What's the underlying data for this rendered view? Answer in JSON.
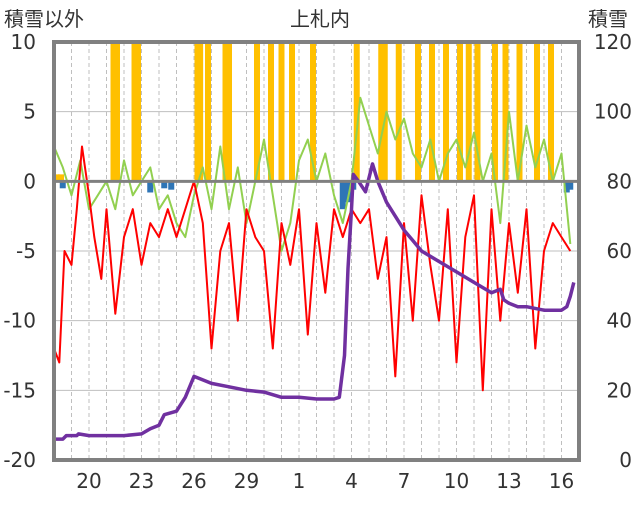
{
  "chart_data": {
    "type": "line",
    "title": "上札内",
    "ylabel_left": "積雪以外",
    "ylabel_right": "積雪",
    "ylim_left": [
      -20,
      10
    ],
    "ylim_right": [
      0,
      120
    ],
    "y_ticks_left": [
      10,
      5,
      0,
      -5,
      -10,
      -15,
      -20
    ],
    "y_ticks_right": [
      120,
      100,
      80,
      60,
      40,
      20,
      0
    ],
    "x_tick_labels": [
      "20",
      "23",
      "26",
      "29",
      "1",
      "4",
      "7",
      "10",
      "13",
      "16"
    ],
    "x_tick_days": [
      2,
      5,
      8,
      11,
      14,
      17,
      20,
      23,
      26,
      29
    ],
    "x_days": 30,
    "grid": true,
    "colors": {
      "precip_positive": "#ffc000",
      "precip_negative": "#2e75b6",
      "temperature": "#ff0000",
      "humidity": "#92d050",
      "snow_depth": "#7030a0",
      "frame": "#808080",
      "grid": "#bfbfbf"
    },
    "series": [
      {
        "axis": "left",
        "kind": "bar",
        "color": "#ffc000",
        "points": [
          [
            0.15,
            0.5
          ],
          [
            0.4,
            0.5
          ],
          [
            3.4,
            10
          ],
          [
            3.6,
            10
          ],
          [
            4.6,
            10
          ],
          [
            4.8,
            10
          ],
          [
            8.2,
            10
          ],
          [
            8.35,
            10
          ],
          [
            8.8,
            10
          ],
          [
            9.8,
            10
          ],
          [
            10.0,
            10
          ],
          [
            11.6,
            10
          ],
          [
            12.4,
            10
          ],
          [
            13.0,
            10
          ],
          [
            13.6,
            10
          ],
          [
            14.8,
            10
          ],
          [
            17.3,
            10
          ],
          [
            18.7,
            10
          ],
          [
            18.9,
            10
          ],
          [
            19.7,
            10
          ],
          [
            20.8,
            10
          ],
          [
            21.6,
            10
          ],
          [
            22.4,
            10
          ],
          [
            23.2,
            10
          ],
          [
            23.7,
            10
          ],
          [
            24.2,
            10
          ],
          [
            25.2,
            10
          ],
          [
            25.8,
            10
          ],
          [
            26.6,
            10
          ],
          [
            27.6,
            10
          ],
          [
            28.4,
            10
          ]
        ]
      },
      {
        "axis": "left",
        "kind": "bar",
        "color": "#2e75b6",
        "points": [
          [
            0.5,
            -0.5
          ],
          [
            5.5,
            -0.8
          ],
          [
            6.3,
            -0.5
          ],
          [
            6.7,
            -0.6
          ],
          [
            16.5,
            -2
          ],
          [
            16.8,
            -1.5
          ],
          [
            17.1,
            -0.6
          ],
          [
            29.3,
            -0.8
          ],
          [
            29.5,
            -0.6
          ]
        ]
      },
      {
        "axis": "left",
        "kind": "line",
        "color": "#92d050",
        "points": [
          [
            0,
            2.5
          ],
          [
            0.5,
            1
          ],
          [
            1,
            -1
          ],
          [
            1.5,
            1.5
          ],
          [
            2,
            -2
          ],
          [
            2.5,
            -1
          ],
          [
            3,
            0
          ],
          [
            3.5,
            -2
          ],
          [
            4,
            1.5
          ],
          [
            4.5,
            -1
          ],
          [
            5,
            0
          ],
          [
            5.5,
            1
          ],
          [
            6,
            -2
          ],
          [
            6.5,
            -1
          ],
          [
            7,
            -3
          ],
          [
            7.5,
            -4
          ],
          [
            8,
            -1
          ],
          [
            8.5,
            1
          ],
          [
            9,
            -2
          ],
          [
            9.5,
            2.5
          ],
          [
            10,
            -2
          ],
          [
            10.5,
            1
          ],
          [
            11,
            -3
          ],
          [
            11.5,
            0
          ],
          [
            12,
            3
          ],
          [
            12.5,
            -1
          ],
          [
            13,
            -5
          ],
          [
            13.5,
            -3
          ],
          [
            14,
            1.5
          ],
          [
            14.5,
            3
          ],
          [
            15,
            0
          ],
          [
            15.5,
            2
          ],
          [
            16,
            -1
          ],
          [
            16.5,
            -3
          ],
          [
            17,
            0
          ],
          [
            17.5,
            6
          ],
          [
            18,
            4
          ],
          [
            18.5,
            2
          ],
          [
            19,
            5
          ],
          [
            19.5,
            3
          ],
          [
            20,
            4.5
          ],
          [
            20.5,
            2
          ],
          [
            21,
            1
          ],
          [
            21.5,
            3
          ],
          [
            22,
            0
          ],
          [
            22.5,
            2
          ],
          [
            23,
            3
          ],
          [
            23.5,
            1
          ],
          [
            24,
            3.5
          ],
          [
            24.5,
            0
          ],
          [
            25,
            2
          ],
          [
            25.5,
            -3
          ],
          [
            26,
            5
          ],
          [
            26.5,
            0
          ],
          [
            27,
            4
          ],
          [
            27.5,
            1
          ],
          [
            28,
            3
          ],
          [
            28.5,
            0
          ],
          [
            29,
            2
          ],
          [
            29.5,
            -4.5
          ]
        ]
      },
      {
        "axis": "left",
        "kind": "line",
        "color": "#ff0000",
        "points": [
          [
            0,
            -12
          ],
          [
            0.3,
            -13
          ],
          [
            0.6,
            -5
          ],
          [
            1,
            -6
          ],
          [
            1.3,
            -2
          ],
          [
            1.6,
            2.5
          ],
          [
            2,
            -1
          ],
          [
            2.3,
            -4
          ],
          [
            2.7,
            -7
          ],
          [
            3,
            -2
          ],
          [
            3.5,
            -9.5
          ],
          [
            4,
            -4
          ],
          [
            4.5,
            -2
          ],
          [
            5,
            -6
          ],
          [
            5.5,
            -3
          ],
          [
            6,
            -4
          ],
          [
            6.5,
            -2
          ],
          [
            7,
            -4
          ],
          [
            7.5,
            -2
          ],
          [
            8,
            0
          ],
          [
            8.5,
            -3
          ],
          [
            9,
            -12
          ],
          [
            9.5,
            -5
          ],
          [
            10,
            -3
          ],
          [
            10.5,
            -10
          ],
          [
            11,
            -2
          ],
          [
            11.5,
            -4
          ],
          [
            12,
            -5
          ],
          [
            12.5,
            -12
          ],
          [
            13,
            -3
          ],
          [
            13.5,
            -6
          ],
          [
            14,
            -2
          ],
          [
            14.5,
            -11
          ],
          [
            15,
            -3
          ],
          [
            15.5,
            -8
          ],
          [
            16,
            -2
          ],
          [
            16.5,
            -4
          ],
          [
            17,
            -2
          ],
          [
            17.5,
            -3
          ],
          [
            18,
            -2
          ],
          [
            18.5,
            -7
          ],
          [
            19,
            -4
          ],
          [
            19.5,
            -14
          ],
          [
            20,
            -3
          ],
          [
            20.5,
            -10
          ],
          [
            21,
            -1
          ],
          [
            21.5,
            -6
          ],
          [
            22,
            -10
          ],
          [
            22.5,
            -2
          ],
          [
            23,
            -13
          ],
          [
            23.5,
            -4
          ],
          [
            24,
            -1
          ],
          [
            24.5,
            -15
          ],
          [
            25,
            -2
          ],
          [
            25.5,
            -10
          ],
          [
            26,
            -3
          ],
          [
            26.5,
            -8
          ],
          [
            27,
            -2
          ],
          [
            27.5,
            -12
          ],
          [
            28,
            -5
          ],
          [
            28.5,
            -3
          ],
          [
            29,
            -4
          ],
          [
            29.5,
            -5
          ]
        ]
      },
      {
        "axis": "right",
        "kind": "line",
        "color": "#7030a0",
        "points": [
          [
            0,
            6
          ],
          [
            0.5,
            6
          ],
          [
            0.7,
            7
          ],
          [
            1.3,
            7
          ],
          [
            1.4,
            7.5
          ],
          [
            2,
            7
          ],
          [
            3,
            7
          ],
          [
            4,
            7
          ],
          [
            5,
            7.5
          ],
          [
            5.5,
            9
          ],
          [
            6,
            10
          ],
          [
            6.3,
            13
          ],
          [
            7,
            14
          ],
          [
            7.5,
            18
          ],
          [
            8,
            24
          ],
          [
            8.5,
            23
          ],
          [
            9,
            22
          ],
          [
            10,
            21
          ],
          [
            11,
            20
          ],
          [
            12,
            19.5
          ],
          [
            13,
            18
          ],
          [
            14,
            18
          ],
          [
            15,
            17.5
          ],
          [
            16,
            17.5
          ],
          [
            16.3,
            18
          ],
          [
            16.6,
            30
          ],
          [
            16.8,
            55
          ],
          [
            17,
            72
          ],
          [
            17.1,
            82
          ],
          [
            17.4,
            80
          ],
          [
            17.8,
            77
          ],
          [
            18.2,
            85
          ],
          [
            18.5,
            80
          ],
          [
            19,
            74
          ],
          [
            19.5,
            70
          ],
          [
            20,
            66
          ],
          [
            20.5,
            63
          ],
          [
            21,
            60
          ],
          [
            22,
            57
          ],
          [
            23,
            54
          ],
          [
            24,
            51
          ],
          [
            25,
            48
          ],
          [
            25.5,
            49
          ],
          [
            25.7,
            46
          ],
          [
            26,
            45
          ],
          [
            26.5,
            44
          ],
          [
            27,
            44
          ],
          [
            28,
            43
          ],
          [
            29,
            43
          ],
          [
            29.3,
            44
          ],
          [
            29.5,
            47
          ],
          [
            29.7,
            51
          ]
        ]
      }
    ]
  }
}
